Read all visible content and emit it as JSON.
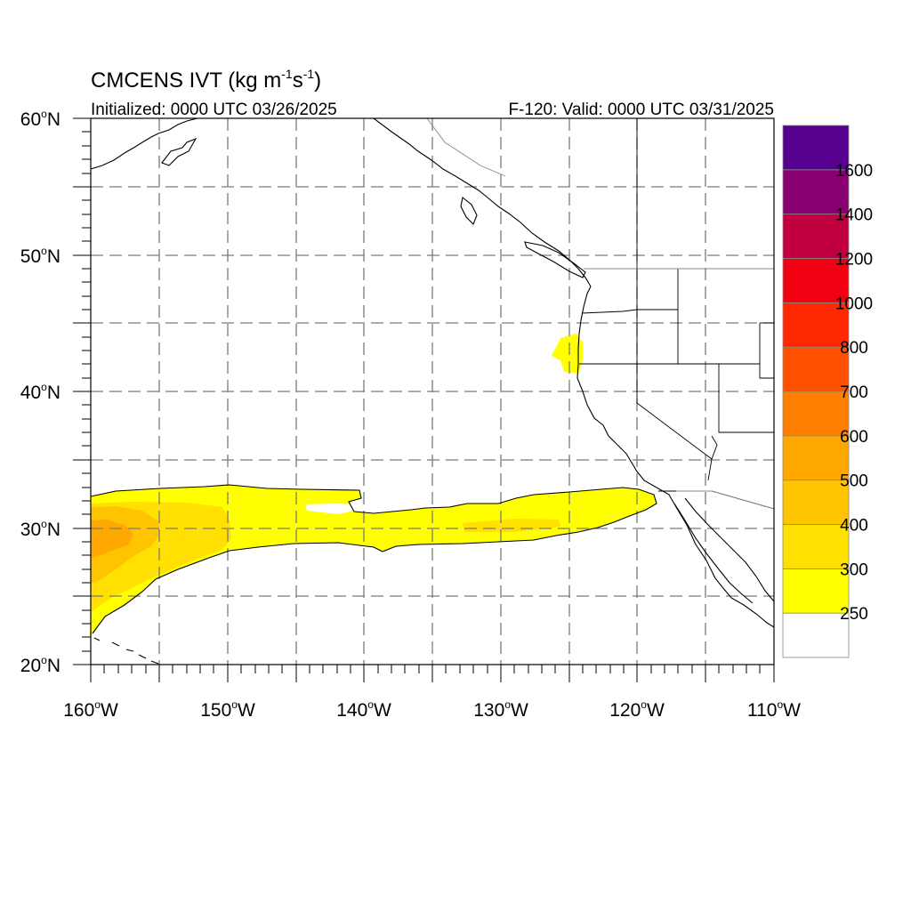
{
  "title": {
    "main": "CMCENS IVT (kg m",
    "sup1": "-1",
    "mid": "s",
    "sup2": "-1",
    "close": ")"
  },
  "subtitle_left": "Initialized: 0000 UTC 03/26/2025",
  "subtitle_right": "F-120: Valid: 0000 UTC 03/31/2025",
  "lat_labels": [
    {
      "deg": "60",
      "hemi": "N"
    },
    {
      "deg": "50",
      "hemi": "N"
    },
    {
      "deg": "40",
      "hemi": "N"
    },
    {
      "deg": "30",
      "hemi": "N"
    },
    {
      "deg": "20",
      "hemi": "N"
    }
  ],
  "lon_labels": [
    {
      "deg": "160",
      "hemi": "W"
    },
    {
      "deg": "150",
      "hemi": "W"
    },
    {
      "deg": "140",
      "hemi": "W"
    },
    {
      "deg": "130",
      "hemi": "W"
    },
    {
      "deg": "120",
      "hemi": "W"
    },
    {
      "deg": "110",
      "hemi": "W"
    }
  ],
  "colorbar": {
    "labels": [
      "250",
      "300",
      "400",
      "500",
      "600",
      "700",
      "800",
      "1000",
      "1200",
      "1400",
      "1600"
    ],
    "colors": [
      "#ffffff",
      "#ffff00",
      "#ffe000",
      "#ffc400",
      "#ffa800",
      "#ff8000",
      "#ff5000",
      "#ff2800",
      "#f00010",
      "#c00040",
      "#880070",
      "#55008f"
    ]
  },
  "colors": {
    "ar_light": "#ffff00",
    "ar_mid": "#ffe000",
    "ar_core": "#ffc400",
    "ar_peak": "#ffa800"
  }
}
